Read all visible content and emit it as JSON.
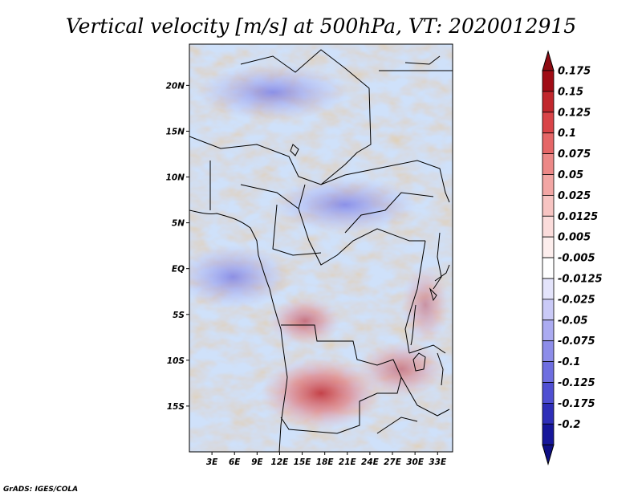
{
  "chart_data": {
    "type": "heatmap",
    "title": "Vertical velocity [m/s] at 500hPa, VT: 2020012915",
    "variable": "Vertical velocity",
    "units": "m/s",
    "level": "500hPa",
    "valid_time": "2020012915",
    "xlim": [
      0,
      35
    ],
    "ylim": [
      -20,
      24.5
    ],
    "x_ticks": [
      {
        "value": 3,
        "label": "3E"
      },
      {
        "value": 6,
        "label": "6E"
      },
      {
        "value": 9,
        "label": "9E"
      },
      {
        "value": 12,
        "label": "12E"
      },
      {
        "value": 15,
        "label": "15E"
      },
      {
        "value": 18,
        "label": "18E"
      },
      {
        "value": 21,
        "label": "21E"
      },
      {
        "value": 24,
        "label": "24E"
      },
      {
        "value": 27,
        "label": "27E"
      },
      {
        "value": 30,
        "label": "30E"
      },
      {
        "value": 33,
        "label": "33E"
      }
    ],
    "y_ticks": [
      {
        "value": 20,
        "label": "20N"
      },
      {
        "value": 15,
        "label": "15N"
      },
      {
        "value": 10,
        "label": "10N"
      },
      {
        "value": 5,
        "label": "5N"
      },
      {
        "value": 0,
        "label": "EQ"
      },
      {
        "value": -5,
        "label": "5S"
      },
      {
        "value": -10,
        "label": "10S"
      },
      {
        "value": -15,
        "label": "15S"
      }
    ],
    "colorbar": {
      "levels": [
        {
          "label": "0.175",
          "color": "#a00c15"
        },
        {
          "label": "0.15",
          "color": "#c1272d"
        },
        {
          "label": "0.125",
          "color": "#d94448"
        },
        {
          "label": "0.1",
          "color": "#e56667"
        },
        {
          "label": "0.075",
          "color": "#ec8887"
        },
        {
          "label": "0.05",
          "color": "#f2a6a4"
        },
        {
          "label": "0.025",
          "color": "#f7c4c2"
        },
        {
          "label": "0.0125",
          "color": "#fbdcdb"
        },
        {
          "label": "0.005",
          "color": "#fdeeed"
        },
        {
          "label": "-0.005",
          "color": "#ffffff"
        },
        {
          "label": "-0.0125",
          "color": "#e4e4fb"
        },
        {
          "label": "-0.025",
          "color": "#cacaf7"
        },
        {
          "label": "-0.05",
          "color": "#ababf1"
        },
        {
          "label": "-0.075",
          "color": "#8d8de9"
        },
        {
          "label": "-0.1",
          "color": "#6e6ee0"
        },
        {
          "label": "-0.125",
          "color": "#4f4fd2"
        },
        {
          "label": "-0.175",
          "color": "#2e2eb8"
        },
        {
          "label": "-0.2",
          "color": "#16169a"
        }
      ],
      "top_color": "#8e0b13",
      "bottom_color": "#0f0f85"
    }
  },
  "footer": {
    "credit": "GrADS: IGES/COLA"
  }
}
